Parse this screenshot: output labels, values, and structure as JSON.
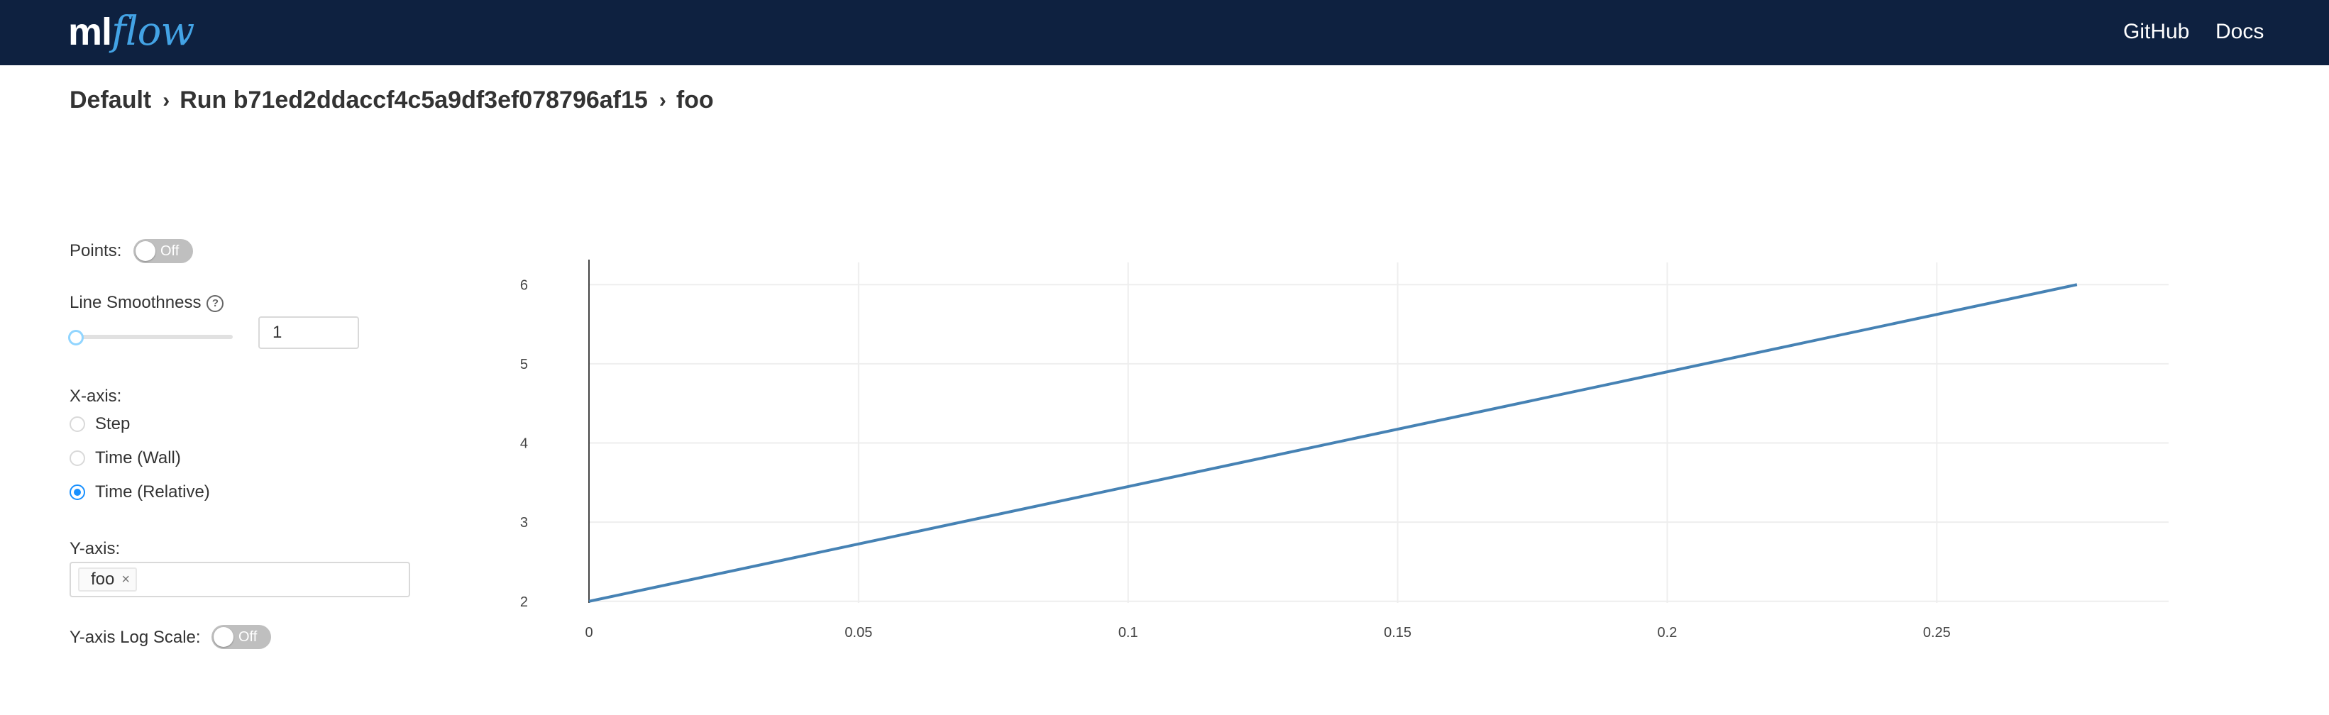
{
  "header": {
    "logo": {
      "part1": "ml",
      "part2": "flow"
    },
    "links": [
      {
        "label": "GitHub"
      },
      {
        "label": "Docs"
      }
    ]
  },
  "breadcrumb": {
    "items": [
      "Default",
      "Run b71ed2ddaccf4c5a9df3ef078796af15",
      "foo"
    ],
    "separator": "›"
  },
  "controls": {
    "points": {
      "label": "Points:",
      "toggle_text": "Off",
      "on": false
    },
    "smoothness": {
      "label": "Line Smoothness",
      "value": "1",
      "slider_value": 1,
      "help_icon": "question-circle-icon"
    },
    "xaxis": {
      "label": "X-axis:",
      "options": [
        {
          "label": "Step",
          "checked": false
        },
        {
          "label": "Time (Wall)",
          "checked": false
        },
        {
          "label": "Time (Relative)",
          "checked": true
        }
      ]
    },
    "yaxis": {
      "label": "Y-axis:",
      "selected": [
        {
          "label": "foo",
          "close": "×"
        }
      ]
    },
    "log_scale": {
      "label": "Y-axis Log Scale:",
      "toggle_text": "Off",
      "on": false
    }
  },
  "chart_data": {
    "type": "line",
    "series": [
      {
        "x": [
          0,
          0.276
        ],
        "y": [
          2,
          6
        ],
        "color": "#4682b4"
      }
    ],
    "xlim": [
      0,
      0.293
    ],
    "ylim": [
      1.98,
      6.28
    ],
    "xticks": [
      0,
      0.05,
      0.1,
      0.15,
      0.2,
      0.25
    ],
    "xtick_labels": [
      "0",
      "0.05",
      "0.1",
      "0.15",
      "0.2",
      "0.25"
    ],
    "yticks": [
      2,
      3,
      4,
      5,
      6
    ],
    "ytick_labels": [
      "2",
      "3",
      "4",
      "5",
      "6"
    ],
    "grid": true
  }
}
